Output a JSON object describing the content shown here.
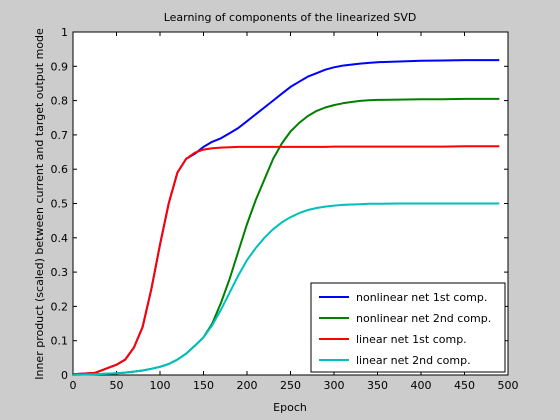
{
  "chart_data": {
    "type": "line",
    "title": "Learning of components of the linearized SVD",
    "xlabel": "Epoch",
    "ylabel": "Inner product (scaled) between current and target output mode",
    "xlim": [
      0,
      500
    ],
    "ylim": [
      0,
      1
    ],
    "xticks": [
      0,
      50,
      100,
      150,
      200,
      250,
      300,
      350,
      400,
      450,
      500
    ],
    "yticks": [
      0,
      0.1,
      0.2,
      0.3,
      0.4,
      0.5,
      0.6,
      0.7,
      0.8,
      0.9,
      1
    ],
    "grid": false,
    "legend_position": "bottom-right",
    "x": [
      0,
      25,
      50,
      60,
      70,
      80,
      90,
      100,
      110,
      120,
      130,
      140,
      150,
      160,
      170,
      180,
      190,
      200,
      210,
      220,
      230,
      240,
      250,
      260,
      270,
      280,
      290,
      300,
      310,
      320,
      330,
      340,
      350,
      375,
      400,
      425,
      450,
      475,
      490
    ],
    "series": [
      {
        "name": "nonlinear net 1st comp.",
        "color": "#0000ff",
        "values": [
          0.002,
          0.006,
          0.03,
          0.045,
          0.08,
          0.14,
          0.25,
          0.38,
          0.5,
          0.59,
          0.63,
          0.645,
          0.665,
          0.68,
          0.69,
          0.705,
          0.72,
          0.74,
          0.76,
          0.78,
          0.8,
          0.82,
          0.84,
          0.855,
          0.87,
          0.88,
          0.89,
          0.897,
          0.902,
          0.905,
          0.908,
          0.91,
          0.912,
          0.914,
          0.916,
          0.917,
          0.918,
          0.918,
          0.918
        ]
      },
      {
        "name": "nonlinear net 2nd comp.",
        "color": "#008000",
        "values": [
          0.001,
          0.002,
          0.005,
          0.007,
          0.01,
          0.013,
          0.018,
          0.024,
          0.032,
          0.045,
          0.062,
          0.085,
          0.11,
          0.15,
          0.21,
          0.28,
          0.36,
          0.44,
          0.51,
          0.57,
          0.63,
          0.675,
          0.71,
          0.735,
          0.755,
          0.77,
          0.78,
          0.787,
          0.792,
          0.796,
          0.799,
          0.801,
          0.802,
          0.803,
          0.804,
          0.804,
          0.805,
          0.805,
          0.805
        ]
      },
      {
        "name": "linear net 1st comp.",
        "color": "#ff0000",
        "values": [
          0.002,
          0.006,
          0.03,
          0.045,
          0.08,
          0.14,
          0.25,
          0.38,
          0.5,
          0.59,
          0.63,
          0.648,
          0.657,
          0.661,
          0.663,
          0.664,
          0.665,
          0.665,
          0.665,
          0.665,
          0.665,
          0.665,
          0.665,
          0.665,
          0.665,
          0.665,
          0.665,
          0.666,
          0.666,
          0.666,
          0.666,
          0.666,
          0.666,
          0.666,
          0.666,
          0.666,
          0.667,
          0.667,
          0.667
        ]
      },
      {
        "name": "linear net 2nd comp.",
        "color": "#00bfbf",
        "values": [
          0.001,
          0.002,
          0.005,
          0.007,
          0.01,
          0.013,
          0.018,
          0.024,
          0.032,
          0.045,
          0.062,
          0.085,
          0.11,
          0.145,
          0.19,
          0.24,
          0.29,
          0.335,
          0.37,
          0.4,
          0.425,
          0.445,
          0.46,
          0.472,
          0.481,
          0.487,
          0.491,
          0.494,
          0.496,
          0.497,
          0.498,
          0.499,
          0.499,
          0.5,
          0.5,
          0.5,
          0.5,
          0.5,
          0.5
        ]
      }
    ]
  }
}
